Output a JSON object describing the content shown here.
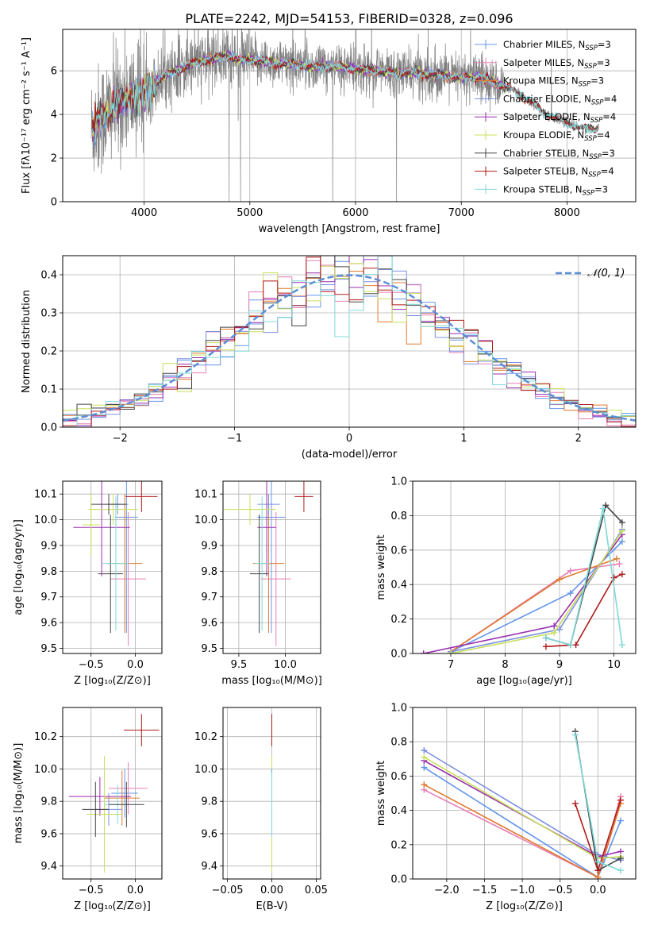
{
  "title": "PLATE=2242, MJD=54153, FIBERID=0328, z=0.096",
  "colors": {
    "Chabrier MILES": "#6495ed",
    "Salpeter MILES": "#e67fb5",
    "Kroupa MILES": "#e07a2e",
    "Chabrier ELODIE": "#7b8fe0",
    "Salpeter ELODIE": "#9a2fb0",
    "Kroupa ELODIE": "#c8e05a",
    "Chabrier STELIB": "#454545",
    "Salpeter STELIB": "#b01a1a",
    "Kroupa STELIB": "#7fd8d8",
    "gaussian": "#5b8fd6"
  },
  "chart_data": [
    {
      "id": "spectrum",
      "type": "line",
      "xlabel": "wavelength [Angstrom, rest frame]",
      "ylabel": "Flux [fλ10⁻¹⁷ erg cm⁻² s⁻¹ A⁻¹]",
      "xlim": [
        3230,
        8650
      ],
      "ylim": [
        0,
        7.9
      ],
      "xticks": [
        4000,
        5000,
        6000,
        7000,
        8000
      ],
      "yticks": [
        0,
        2,
        4,
        6
      ],
      "model_series": [
        {
          "name": "Chabrier MILES",
          "sub": "SSP",
          "n": "3"
        },
        {
          "name": "Salpeter MILES",
          "sub": "SSP",
          "n": "3"
        },
        {
          "name": "Kroupa MILES",
          "sub": "SSP",
          "n": "3"
        },
        {
          "name": "Chabrier ELODIE",
          "sub": "SSP",
          "n": "4"
        },
        {
          "name": "Salpeter ELODIE",
          "sub": "SSP",
          "n": "4"
        },
        {
          "name": "Kroupa ELODIE",
          "sub": "SSP",
          "n": "4"
        },
        {
          "name": "Chabrier STELIB",
          "sub": "SSP",
          "n": "3"
        },
        {
          "name": "Salpeter STELIB",
          "sub": "SSP",
          "n": "4"
        },
        {
          "name": "Kroupa STELIB",
          "sub": "SSP",
          "n": "3"
        }
      ],
      "envelope": {
        "x": [
          3500,
          3600,
          3700,
          3800,
          3900,
          4000,
          4100,
          4200,
          4300,
          4400,
          4500,
          4600,
          4700,
          4800,
          4900,
          5000,
          5200,
          5400,
          5600,
          5800,
          6000,
          6200,
          6400,
          6600,
          6800,
          7000,
          7200,
          7400,
          7600,
          7800,
          8000,
          8200,
          8300
        ],
        "y": [
          3.3,
          3.9,
          4.3,
          4.7,
          4.8,
          5.0,
          5.4,
          5.8,
          6.0,
          6.2,
          6.4,
          6.5,
          6.6,
          6.7,
          6.5,
          6.5,
          6.4,
          6.3,
          6.2,
          6.2,
          6.1,
          6.0,
          5.9,
          5.9,
          5.8,
          5.7,
          5.7,
          5.3,
          4.8,
          4.0,
          3.6,
          3.3,
          3.4
        ]
      }
    },
    {
      "id": "residuals",
      "type": "step",
      "xlabel": "(data-model)/error",
      "ylabel": "Normed distribution",
      "xlim": [
        -2.5,
        2.5
      ],
      "ylim": [
        0,
        0.45
      ],
      "xticks": [
        -2,
        -1,
        0,
        1,
        2
      ],
      "yticks": [
        0.0,
        0.1,
        0.2,
        0.3,
        0.4
      ],
      "bin_width": 0.125,
      "legend": "𝒩(0, 1)",
      "legend_position": "top-right"
    },
    {
      "id": "age_vs_Z",
      "type": "scatter",
      "xlabel": "Z [log₁₀(Z/Z⊙)]",
      "ylabel": "age  [log₁₀(age/yr)]",
      "xlim": [
        -0.82,
        0.3
      ],
      "ylim": [
        9.48,
        10.15
      ],
      "xticks": [
        -0.5,
        0.0
      ],
      "yticks": [
        9.5,
        9.6,
        9.7,
        9.8,
        9.9,
        10.0,
        10.1
      ],
      "points": [
        {
          "series": "Chabrier MILES",
          "x": -0.1,
          "y": 10.01,
          "xerr": 0.13,
          "yerr": 0.45
        },
        {
          "series": "Salpeter MILES",
          "x": -0.08,
          "y": 9.77,
          "xerr": 0.2,
          "yerr": 0.26
        },
        {
          "series": "Kroupa MILES",
          "x": -0.12,
          "y": 9.83,
          "xerr": 0.2,
          "yerr": 0.27
        },
        {
          "series": "Chabrier ELODIE",
          "x": -0.2,
          "y": 10.06,
          "xerr": 0.12,
          "yerr": 0.04
        },
        {
          "series": "Salpeter ELODIE",
          "x": -0.38,
          "y": 9.97,
          "xerr": 0.32,
          "yerr": 0.19
        },
        {
          "series": "Kroupa ELODIE",
          "x": -0.25,
          "y": 10.04,
          "xerr": 0.28,
          "yerr": 0.06
        },
        {
          "series": "Chabrier STELIB",
          "x": -0.28,
          "y": 9.79,
          "xerr": 0.14,
          "yerr": 0.23
        },
        {
          "series": "Salpeter STELIB",
          "x": 0.07,
          "y": 10.09,
          "xerr": 0.18,
          "yerr": 0.06
        },
        {
          "series": "Kroupa STELIB",
          "x": -0.22,
          "y": 9.83,
          "xerr": 0.15,
          "yerr": 0.26
        },
        {
          "series": "Chabrier STELIB",
          "x": -0.3,
          "y": 10.06,
          "xerr": 0.2,
          "yerr": 0.04
        },
        {
          "series": "Kroupa ELODIE",
          "x": -0.5,
          "y": 9.98,
          "xerr": 0.1,
          "yerr": 0.12
        }
      ]
    },
    {
      "id": "age_vs_mass",
      "type": "scatter",
      "xlabel": "mass [log₁₀(M/M⊙)]",
      "ylabel": "",
      "xlim": [
        9.33,
        10.38
      ],
      "ylim": [
        9.48,
        10.15
      ],
      "xticks": [
        9.5,
        10.0
      ],
      "yticks": [
        9.5,
        9.6,
        9.7,
        9.8,
        9.9,
        10.0,
        10.1
      ],
      "points": [
        {
          "series": "Chabrier MILES",
          "x": 9.85,
          "y": 10.01,
          "xerr": 0.15,
          "yerr": 0.45
        },
        {
          "series": "Salpeter MILES",
          "x": 9.9,
          "y": 9.77,
          "xerr": 0.16,
          "yerr": 0.26
        },
        {
          "series": "Kroupa MILES",
          "x": 9.82,
          "y": 9.83,
          "xerr": 0.17,
          "yerr": 0.27
        },
        {
          "series": "Chabrier ELODIE",
          "x": 9.82,
          "y": 10.06,
          "xerr": 0.12,
          "yerr": 0.04
        },
        {
          "series": "Salpeter ELODIE",
          "x": 9.8,
          "y": 9.97,
          "xerr": 0.1,
          "yerr": 0.19
        },
        {
          "series": "Kroupa ELODIE",
          "x": 9.62,
          "y": 10.04,
          "xerr": 0.28,
          "yerr": 0.06
        },
        {
          "series": "Chabrier STELIB",
          "x": 9.72,
          "y": 9.79,
          "xerr": 0.1,
          "yerr": 0.23
        },
        {
          "series": "Salpeter STELIB",
          "x": 10.2,
          "y": 10.09,
          "xerr": 0.1,
          "yerr": 0.06
        },
        {
          "series": "Kroupa STELIB",
          "x": 9.75,
          "y": 9.83,
          "xerr": 0.08,
          "yerr": 0.26
        }
      ]
    },
    {
      "id": "weight_vs_age",
      "type": "line",
      "xlabel": "age  [log₁₀(age/yr)]",
      "ylabel": "mass weight",
      "xlim": [
        6.3,
        10.4
      ],
      "ylim": [
        0,
        1.0
      ],
      "xticks": [
        7,
        8,
        9,
        10
      ],
      "yticks": [
        0.0,
        0.2,
        0.4,
        0.6,
        0.8,
        1.0
      ],
      "series": [
        {
          "name": "Chabrier MILES",
          "x": [
            7.0,
            9.2,
            10.15
          ],
          "y": [
            0.01,
            0.35,
            0.65
          ]
        },
        {
          "name": "Salpeter MILES",
          "x": [
            7.0,
            9.2,
            10.1
          ],
          "y": [
            0.01,
            0.48,
            0.52
          ]
        },
        {
          "name": "Kroupa MILES",
          "x": [
            7.0,
            9.0,
            10.05
          ],
          "y": [
            0.01,
            0.43,
            0.55
          ]
        },
        {
          "name": "Chabrier ELODIE",
          "x": [
            7.0,
            9.0,
            10.15
          ],
          "y": [
            0.01,
            0.14,
            0.72
          ]
        },
        {
          "name": "Salpeter ELODIE",
          "x": [
            6.5,
            8.9,
            10.15
          ],
          "y": [
            0.0,
            0.16,
            0.69
          ]
        },
        {
          "name": "Kroupa ELODIE",
          "x": [
            7.0,
            8.9,
            10.15
          ],
          "y": [
            0.0,
            0.12,
            0.71
          ]
        },
        {
          "name": "Chabrier STELIB",
          "x": [
            8.75,
            9.2,
            9.85,
            10.15
          ],
          "y": [
            0.09,
            0.05,
            0.86,
            0.76
          ]
        },
        {
          "name": "Salpeter STELIB",
          "x": [
            8.75,
            9.3,
            10.0,
            10.15
          ],
          "y": [
            0.04,
            0.05,
            0.44,
            0.46
          ]
        },
        {
          "name": "Kroupa STELIB",
          "x": [
            8.75,
            9.2,
            9.8,
            10.15
          ],
          "y": [
            0.09,
            0.05,
            0.84,
            0.05
          ]
        }
      ]
    },
    {
      "id": "mass_vs_Z",
      "type": "scatter",
      "xlabel": "Z [log₁₀(Z/Z⊙)]",
      "ylabel": "mass [log₁₀(M/M⊙)]",
      "xlim": [
        -0.82,
        0.3
      ],
      "ylim": [
        9.32,
        10.38
      ],
      "xticks": [
        -0.5,
        0.0
      ],
      "yticks": [
        9.4,
        9.6,
        9.8,
        10.0,
        10.2
      ],
      "points": [
        {
          "series": "Chabrier MILES",
          "x": -0.12,
          "y": 9.85,
          "xerr": 0.15,
          "yerr": 0.15
        },
        {
          "series": "Salpeter MILES",
          "x": -0.08,
          "y": 9.88,
          "xerr": 0.22,
          "yerr": 0.16
        },
        {
          "series": "Kroupa MILES",
          "x": -0.15,
          "y": 9.82,
          "xerr": 0.2,
          "yerr": 0.17
        },
        {
          "series": "Chabrier ELODIE",
          "x": -0.3,
          "y": 9.75,
          "xerr": 0.15,
          "yerr": 0.1
        },
        {
          "series": "Salpeter ELODIE",
          "x": -0.4,
          "y": 9.83,
          "xerr": 0.35,
          "yerr": 0.12
        },
        {
          "series": "Kroupa ELODIE",
          "x": -0.35,
          "y": 9.72,
          "xerr": 0.2,
          "yerr": 0.36
        },
        {
          "series": "Chabrier STELIB",
          "x": -0.45,
          "y": 9.75,
          "xerr": 0.15,
          "yerr": 0.17
        },
        {
          "series": "Salpeter STELIB",
          "x": 0.07,
          "y": 10.24,
          "xerr": 0.2,
          "yerr": 0.1
        },
        {
          "series": "Kroupa STELIB",
          "x": -0.2,
          "y": 9.78,
          "xerr": 0.15,
          "yerr": 0.12
        },
        {
          "series": "Chabrier STELIB",
          "x": -0.1,
          "y": 9.78,
          "xerr": 0.2,
          "yerr": 0.14
        }
      ]
    },
    {
      "id": "mass_vs_EBV",
      "type": "scatter",
      "xlabel": "E(B-V)",
      "ylabel": "",
      "xlim": [
        -0.055,
        0.055
      ],
      "ylim": [
        9.32,
        10.38
      ],
      "xticks": [
        -0.05,
        0.0,
        0.05
      ],
      "yticks": [
        9.4,
        9.6,
        9.8,
        10.0,
        10.2
      ],
      "points": [
        {
          "series": "Kroupa ELODIE",
          "x": 0.0,
          "y": 9.72,
          "xerr": 0.0,
          "yerr": 0.36
        },
        {
          "series": "Chabrier MILES",
          "x": 0.0,
          "y": 9.85,
          "xerr": 0.0,
          "yerr": 0.15
        },
        {
          "series": "Kroupa STELIB",
          "x": 0.0,
          "y": 9.78,
          "xerr": 0.0,
          "yerr": 0.2
        },
        {
          "series": "Salpeter STELIB",
          "x": 0.0,
          "y": 10.24,
          "xerr": 0.0,
          "yerr": 0.1
        }
      ]
    },
    {
      "id": "weight_vs_Z",
      "type": "line",
      "xlabel": "Z [log₁₀(Z/Z⊙)]",
      "ylabel": "mass weight",
      "xlim": [
        -2.45,
        0.5
      ],
      "ylim": [
        0,
        1.0
      ],
      "xticks": [
        -2.0,
        -1.5,
        -1.0,
        -0.5,
        0.0
      ],
      "yticks": [
        0.0,
        0.2,
        0.4,
        0.6,
        0.8,
        1.0
      ],
      "series": [
        {
          "name": "Chabrier MILES",
          "x": [
            -2.3,
            0.0,
            0.3
          ],
          "y": [
            0.65,
            0.01,
            0.34
          ]
        },
        {
          "name": "Salpeter MILES",
          "x": [
            -2.3,
            0.0,
            0.3
          ],
          "y": [
            0.52,
            0.01,
            0.48
          ]
        },
        {
          "name": "Kroupa MILES",
          "x": [
            -2.3,
            0.0,
            0.3
          ],
          "y": [
            0.55,
            0.01,
            0.44
          ]
        },
        {
          "name": "Chabrier ELODIE",
          "x": [
            -2.3,
            0.0,
            0.3
          ],
          "y": [
            0.75,
            0.14,
            0.11
          ]
        },
        {
          "name": "Salpeter ELODIE",
          "x": [
            -2.3,
            0.0,
            0.3
          ],
          "y": [
            0.69,
            0.13,
            0.16
          ]
        },
        {
          "name": "Kroupa ELODIE",
          "x": [
            -2.3,
            0.0,
            0.3
          ],
          "y": [
            0.71,
            0.12,
            0.13
          ]
        },
        {
          "name": "Chabrier STELIB",
          "x": [
            -0.3,
            0.0,
            0.3
          ],
          "y": [
            0.86,
            0.05,
            0.12
          ]
        },
        {
          "name": "Salpeter STELIB",
          "x": [
            -0.3,
            0.0,
            0.3
          ],
          "y": [
            0.44,
            0.05,
            0.46
          ]
        },
        {
          "name": "Kroupa STELIB",
          "x": [
            -0.3,
            0.0,
            0.3
          ],
          "y": [
            0.84,
            0.1,
            0.05
          ]
        }
      ]
    }
  ]
}
